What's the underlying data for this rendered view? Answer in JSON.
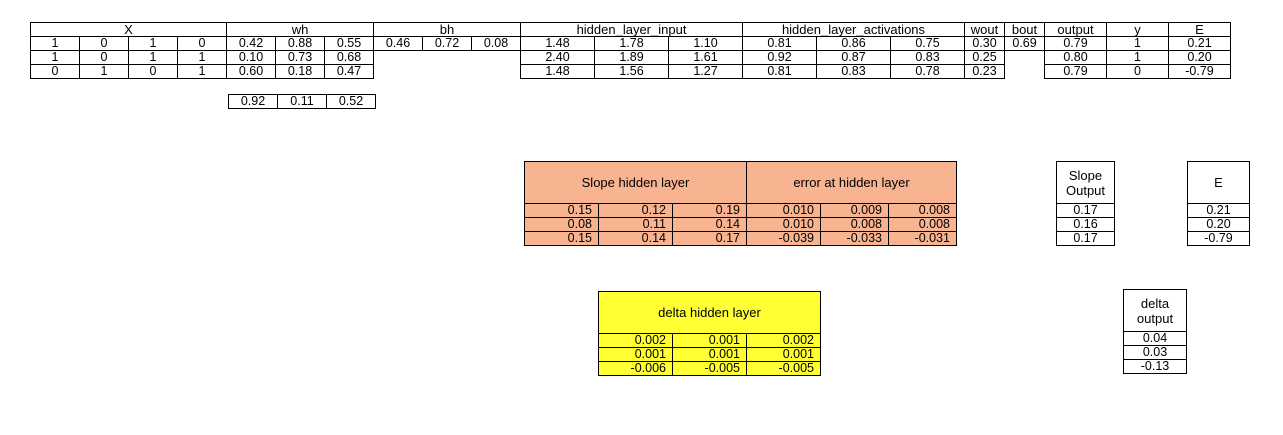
{
  "main_table": {
    "headers": [
      "X",
      "wh",
      "bh",
      "hidden_layer_input",
      "hidden_layer_activations",
      "wout",
      "bout",
      "output",
      "y",
      "E"
    ],
    "rows": [
      [
        "1",
        "0",
        "1",
        "0",
        "0.42",
        "0.88",
        "0.55",
        "0.46",
        "0.72",
        "0.08",
        "1.48",
        "1.78",
        "1.10",
        "0.81",
        "0.86",
        "0.75",
        "0.30",
        "0.69",
        "0.79",
        "1",
        "0.21"
      ],
      [
        "1",
        "0",
        "1",
        "1",
        "0.10",
        "0.73",
        "0.68",
        "",
        "",
        "",
        "2.40",
        "1.89",
        "1.61",
        "0.92",
        "0.87",
        "0.83",
        "0.25",
        "",
        "0.80",
        "1",
        "0.20"
      ],
      [
        "0",
        "1",
        "0",
        "1",
        "0.60",
        "0.18",
        "0.47",
        "",
        "",
        "",
        "1.48",
        "1.56",
        "1.27",
        "0.81",
        "0.83",
        "0.78",
        "0.23",
        "",
        "0.79",
        "0",
        "-0.79"
      ]
    ],
    "wh_extra_row": [
      "0.92",
      "0.11",
      "0.52"
    ]
  },
  "slope_hidden": {
    "title": "Slope hidden layer",
    "rows": [
      [
        "0.15",
        "0.12",
        "0.19"
      ],
      [
        "0.08",
        "0.11",
        "0.14"
      ],
      [
        "0.15",
        "0.14",
        "0.17"
      ]
    ],
    "color": "#f8b490"
  },
  "error_hidden": {
    "title": "error at hidden layer",
    "rows": [
      [
        "0.010",
        "0.009",
        "0.008"
      ],
      [
        "0.010",
        "0.008",
        "0.008"
      ],
      [
        "-0.039",
        "-0.033",
        "-0.031"
      ]
    ]
  },
  "slope_output": {
    "title_line1": "Slope",
    "title_line2": "Output",
    "values": [
      "0.17",
      "0.16",
      "0.17"
    ]
  },
  "e_table": {
    "title": "E",
    "values": [
      "0.21",
      "0.20",
      "-0.79"
    ]
  },
  "delta_hidden": {
    "title": "delta hidden layer",
    "rows": [
      [
        "0.002",
        "0.001",
        "0.002"
      ],
      [
        "0.001",
        "0.001",
        "0.001"
      ],
      [
        "-0.006",
        "-0.005",
        "-0.005"
      ]
    ],
    "color": "#ffff33"
  },
  "delta_output": {
    "title_line1": "delta",
    "title_line2": "output",
    "values": [
      "0.04",
      "0.03",
      "-0.13"
    ]
  }
}
